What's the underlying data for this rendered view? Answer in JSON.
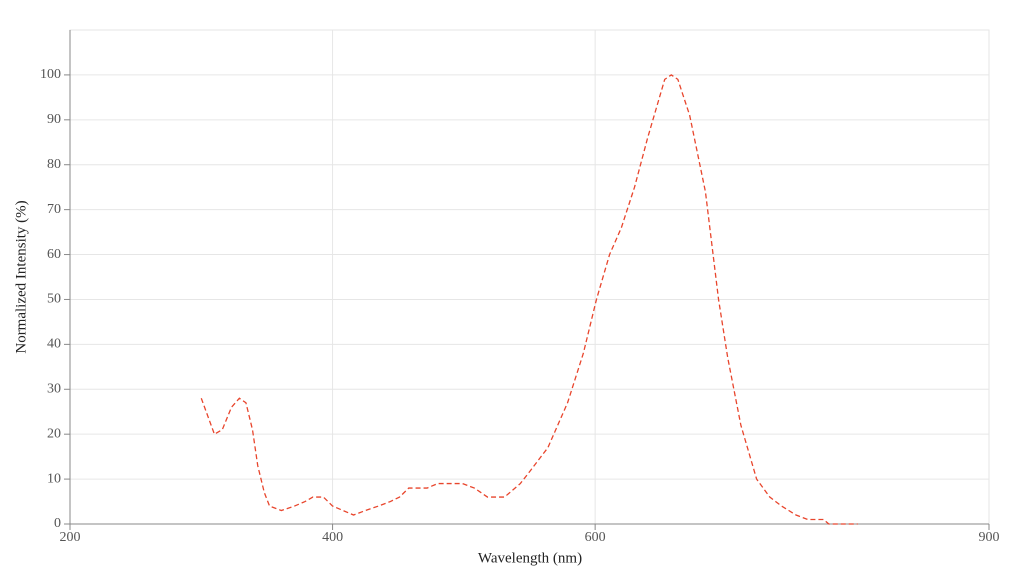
{
  "chart_data": {
    "type": "line",
    "x_label": "Wavelength (nm)",
    "y_label": "Normalized Intensity (%)",
    "x": [
      300,
      310,
      316,
      323,
      329,
      334,
      339,
      343,
      348,
      352,
      361,
      371,
      379,
      385,
      393,
      400,
      408,
      416,
      425,
      435,
      444,
      451,
      458,
      472,
      480,
      499,
      508,
      518,
      531,
      543,
      551,
      564,
      579,
      591,
      601,
      611,
      620,
      630,
      640,
      649,
      653,
      658,
      663,
      672,
      684,
      694,
      701,
      711,
      723,
      733,
      742,
      753,
      762,
      774,
      778,
      800
    ],
    "series": [
      {
        "name": "Intensity",
        "color": "#e8452c",
        "values": [
          28,
          20,
          21,
          26,
          28,
          27,
          21,
          13,
          7,
          4,
          3,
          4,
          5,
          6,
          6,
          4,
          3,
          2,
          3,
          4,
          5,
          6,
          8,
          8,
          9,
          9,
          8,
          6,
          6,
          9,
          12,
          17,
          27,
          38,
          50,
          60,
          66,
          75,
          86,
          95,
          99,
          100,
          99,
          91,
          74,
          50,
          37,
          22,
          10,
          6,
          4,
          2,
          1,
          1,
          0,
          0
        ]
      }
    ],
    "xlim": [
      200,
      900
    ],
    "xticks": [
      200,
      400,
      600,
      900
    ],
    "ylim": [
      0,
      110
    ],
    "yticks": [
      0,
      10,
      20,
      30,
      40,
      50,
      60,
      70,
      80,
      90,
      100
    ],
    "grid": true
  }
}
